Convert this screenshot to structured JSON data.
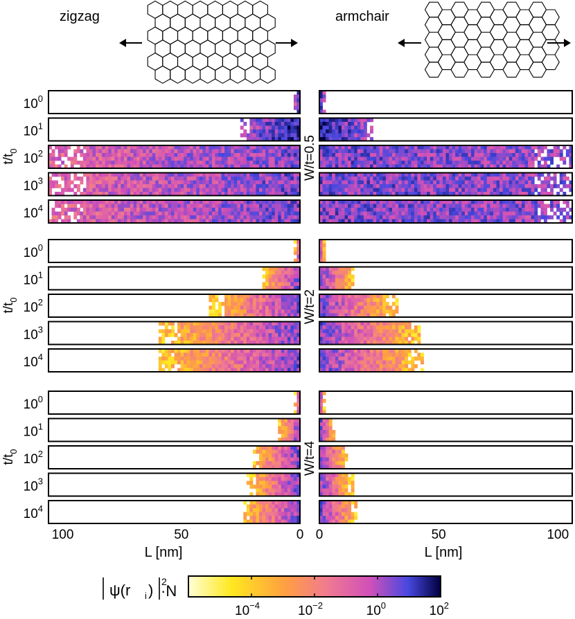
{
  "chart_data": {
    "type": "heatmap",
    "labels": {
      "left_title": "zigzag",
      "right_title": "armchair",
      "y_axis": "t/t",
      "y_axis_sub": "0",
      "x_axis": "L [nm]",
      "colorbar_label_psi": "ψ(r",
      "colorbar_label_sub": "i",
      "colorbar_label_tail": ")",
      "colorbar_label_exp": "2",
      "colorbar_label_N": "·N"
    },
    "time_ticks": [
      {
        "base": "10",
        "exp": "0"
      },
      {
        "base": "10",
        "exp": "1"
      },
      {
        "base": "10",
        "exp": "2"
      },
      {
        "base": "10",
        "exp": "3"
      },
      {
        "base": "10",
        "exp": "4"
      }
    ],
    "x_ticks_left": [
      {
        "value": 100,
        "label": "100"
      },
      {
        "value": 50,
        "label": "50"
      },
      {
        "value": 0,
        "label": "0"
      }
    ],
    "x_ticks_right": [
      {
        "value": 0,
        "label": "0"
      },
      {
        "value": 50,
        "label": "50"
      },
      {
        "value": 100,
        "label": "100"
      }
    ],
    "x_range": [
      0,
      106
    ],
    "colorbar": {
      "scale": "log",
      "range_exp": [
        -6,
        2
      ],
      "ticks": [
        {
          "base": "10",
          "exp": "−4",
          "value": -4
        },
        {
          "base": "10",
          "exp": "−2",
          "value": -2
        },
        {
          "base": "10",
          "exp": "0",
          "value": 0
        },
        {
          "base": "10",
          "exp": "2",
          "value": 2
        }
      ],
      "colors": [
        "#ffffd6",
        "#ffe820",
        "#ffa040",
        "#f07a90",
        "#d050b8",
        "#4848e0",
        "#000040"
      ]
    },
    "groups": [
      {
        "disorder_label": "W/t=0.5",
        "zigzag_spread_nm": [
          2,
          25,
          106,
          106,
          106
        ],
        "armchair_spread_nm": [
          2,
          23,
          106,
          106,
          106
        ]
      },
      {
        "disorder_label": "W/t=2",
        "zigzag_spread_nm": [
          2,
          16,
          38,
          59,
          60
        ],
        "armchair_spread_nm": [
          2,
          15,
          33,
          43,
          44
        ]
      },
      {
        "disorder_label": "W/t=4",
        "zigzag_spread_nm": [
          2,
          9,
          20,
          22,
          24
        ],
        "armchair_spread_nm": [
          2,
          7,
          12,
          14,
          16
        ]
      }
    ]
  }
}
